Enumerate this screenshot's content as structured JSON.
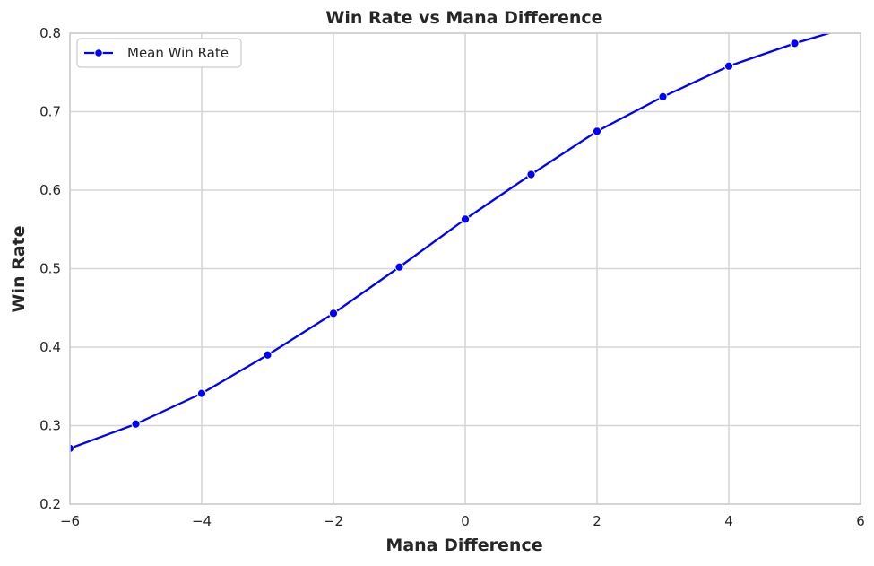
{
  "chart_data": {
    "type": "line",
    "title": "Win Rate vs Mana Difference",
    "xlabel": "Mana Difference",
    "ylabel": "Win Rate",
    "xlim": [
      -6,
      6
    ],
    "ylim": [
      0.2,
      0.8
    ],
    "xticks": [
      -6,
      -4,
      -2,
      0,
      2,
      4,
      6
    ],
    "xtick_labels": [
      "−6",
      "−4",
      "−2",
      "0",
      "2",
      "4",
      "6"
    ],
    "yticks": [
      0.2,
      0.3,
      0.4,
      0.5,
      0.6,
      0.7,
      0.8
    ],
    "ytick_labels": [
      "0.2",
      "0.3",
      "0.4",
      "0.5",
      "0.6",
      "0.7",
      "0.8"
    ],
    "grid": true,
    "legend_position": "top-left",
    "series": [
      {
        "name": "Mean Win Rate",
        "color": "#0000ff",
        "marker": "circle",
        "x": [
          -6,
          -5,
          -4,
          -3,
          -2,
          -1,
          0,
          1,
          2,
          3,
          4,
          5,
          6
        ],
        "y": [
          0.271,
          0.302,
          0.341,
          0.39,
          0.443,
          0.502,
          0.563,
          0.62,
          0.675,
          0.719,
          0.758,
          0.787,
          0.812
        ]
      }
    ]
  }
}
